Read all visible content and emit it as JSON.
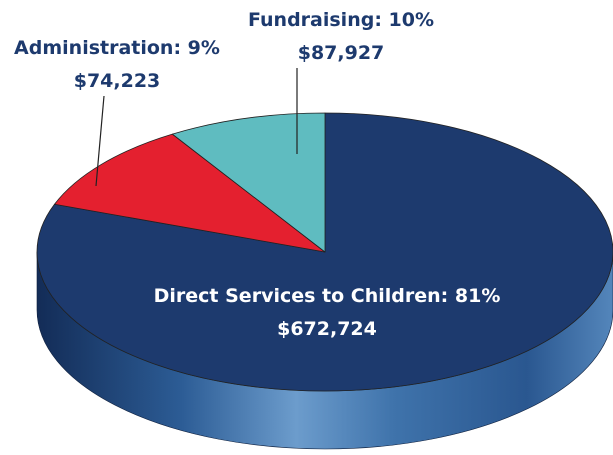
{
  "chart_data": {
    "type": "pie",
    "title": "",
    "categories": [
      "Direct Services to Children",
      "Fundraising",
      "Administration"
    ],
    "values": [
      672724,
      87927,
      74223
    ],
    "percent_labels": [
      "81%",
      "10%",
      "9%"
    ],
    "value_labels": [
      "$672,724",
      "$87,927",
      "$74,223"
    ],
    "colors": [
      "#1d3a6e",
      "#e4202f",
      "#5fbcc0"
    ],
    "style": "3d",
    "legend": "none"
  }
}
